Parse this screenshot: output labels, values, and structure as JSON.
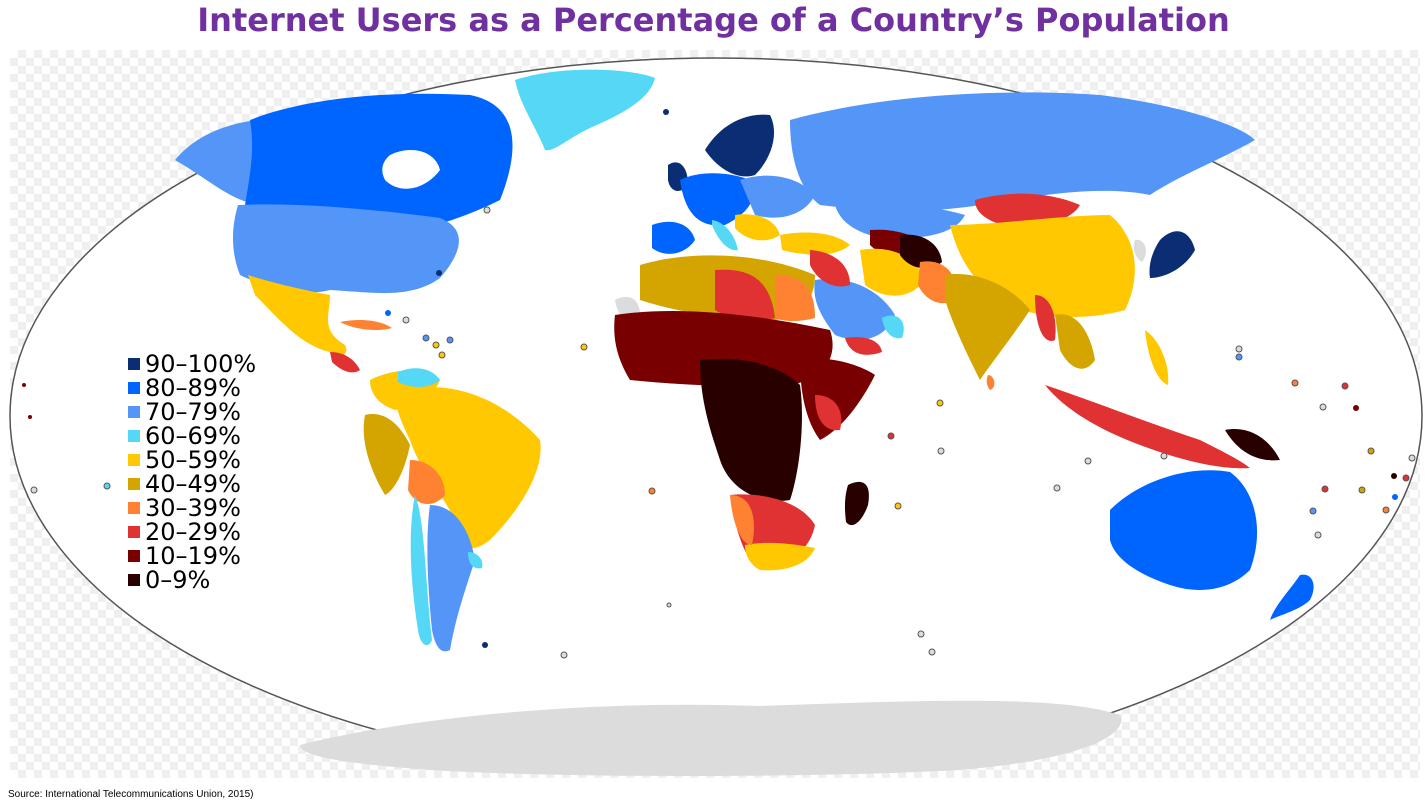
{
  "title": "Internet Users as a Percentage of a Country’s Population",
  "source": "Source: International Telecommunications Union, 2015)",
  "legend": [
    {
      "label": "90–100%",
      "color": "#0a2d73"
    },
    {
      "label": "80–89%",
      "color": "#0064ff"
    },
    {
      "label": "70–79%",
      "color": "#5496f8"
    },
    {
      "label": "60–69%",
      "color": "#55d8f6"
    },
    {
      "label": "50–59%",
      "color": "#ffc800"
    },
    {
      "label": "40–49%",
      "color": "#d4a400"
    },
    {
      "label": "30–39%",
      "color": "#ff8232"
    },
    {
      "label": "20–29%",
      "color": "#e03232"
    },
    {
      "label": "10–19%",
      "color": "#780000"
    },
    {
      "label": "0–9%",
      "color": "#280000"
    }
  ],
  "colors": {
    "no_data": "#dcdcdc",
    "ocean": "#ffffff",
    "title": "#7030a0"
  }
}
